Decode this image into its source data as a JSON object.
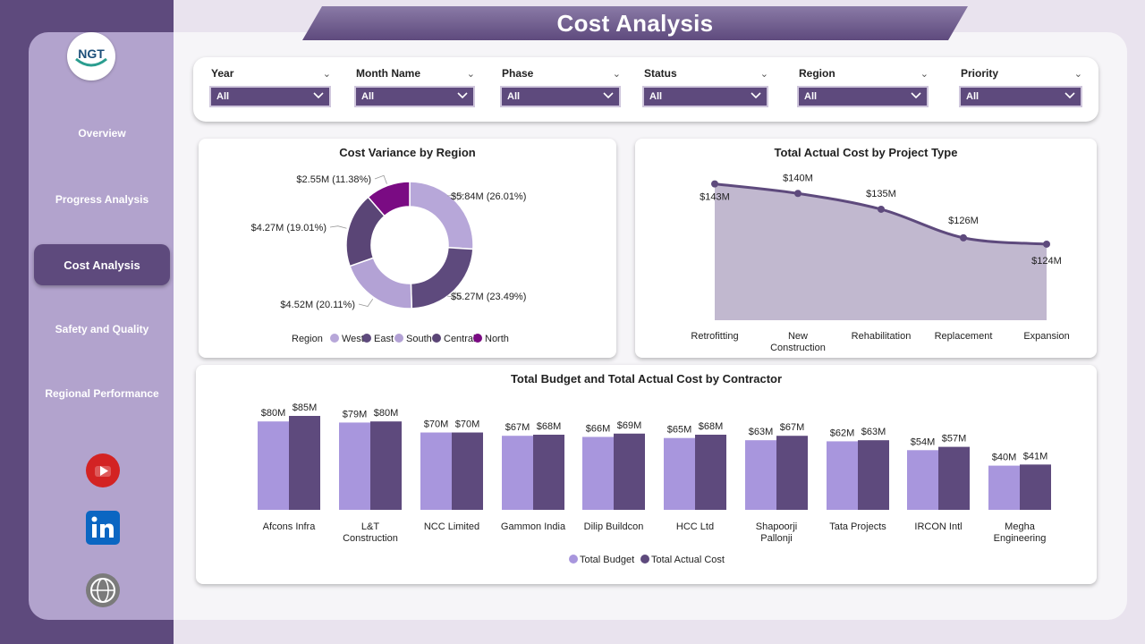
{
  "header": {
    "title": "Cost Analysis"
  },
  "logo": {
    "text": "NGT"
  },
  "sidebar": {
    "items": [
      {
        "label": "Overview",
        "active": false
      },
      {
        "label": "Progress Analysis",
        "active": false
      },
      {
        "label": "Cost Analysis",
        "active": true
      },
      {
        "label": "Safety and Quality",
        "active": false
      },
      {
        "label": "Regional Performance",
        "active": false
      }
    ],
    "social": [
      "youtube-icon",
      "linkedin-icon",
      "globe-icon"
    ]
  },
  "filters": [
    {
      "label": "Year",
      "value": "All"
    },
    {
      "label": "Month Name",
      "value": "All"
    },
    {
      "label": "Phase",
      "value": "All"
    },
    {
      "label": "Status",
      "value": "All"
    },
    {
      "label": "Region",
      "value": "All"
    },
    {
      "label": "Priority",
      "value": "All"
    }
  ],
  "colors": {
    "west": "#b7a7d9",
    "east": "#5e4a7d",
    "south": "#b3a2d5",
    "central": "#5a4576",
    "north": "#7a0b83",
    "budget": "#a896dd",
    "actual": "#5e4a7d",
    "accent": "#5e4a7d"
  },
  "chart_data": [
    {
      "id": "donut",
      "type": "pie",
      "title": "Cost Variance by Region",
      "legend_title": "Region",
      "legend_position": "bottom",
      "slices": [
        {
          "name": "West",
          "value": 5.84,
          "label": "$5.84M (26.01%)"
        },
        {
          "name": "East",
          "value": 5.27,
          "label": "$5.27M (23.49%)"
        },
        {
          "name": "South",
          "value": 4.52,
          "label": "$4.52M (20.11%)"
        },
        {
          "name": "Central",
          "value": 4.27,
          "label": "$4.27M (19.01%)"
        },
        {
          "name": "North",
          "value": 2.55,
          "label": "$2.55M (11.38%)"
        }
      ]
    },
    {
      "id": "area",
      "type": "area",
      "title": "Total Actual Cost by Project Type",
      "categories": [
        "Retrofitting",
        "New Construction",
        "Rehabilitation",
        "Replacement",
        "Expansion"
      ],
      "values": [
        143,
        140,
        135,
        126,
        124
      ],
      "labels": [
        "$143M",
        "$140M",
        "$135M",
        "$126M",
        "$124M"
      ]
    },
    {
      "id": "bars",
      "type": "bar",
      "title": "Total Budget and Total Actual Cost by Contractor",
      "categories": [
        "Afcons Infra",
        "L&T Construction",
        "NCC Limited",
        "Gammon India",
        "Dilip Buildcon",
        "HCC Ltd",
        "Shapoorji Pallonji",
        "Tata Projects",
        "IRCON Intl",
        "Megha Engineering"
      ],
      "series": [
        {
          "name": "Total Budget",
          "values": [
            80,
            79,
            70,
            67,
            66,
            65,
            63,
            62,
            54,
            40
          ]
        },
        {
          "name": "Total Actual Cost",
          "values": [
            85,
            80,
            70,
            68,
            69,
            68,
            67,
            63,
            57,
            41
          ]
        }
      ],
      "legend_position": "bottom"
    }
  ]
}
